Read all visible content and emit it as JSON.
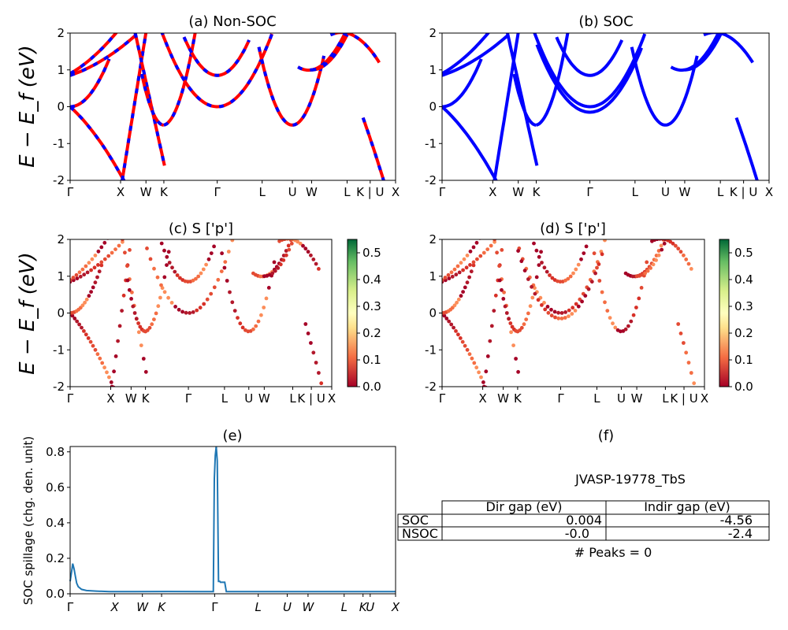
{
  "figure": {
    "ylabel_bands": "E − E_f (eV)",
    "sym_labels": [
      "Γ",
      "X",
      "W",
      "K",
      "Γ",
      "L",
      "U",
      "W",
      "L",
      "K | U",
      "X"
    ]
  },
  "chart_data": [
    {
      "id": "a",
      "type": "line",
      "title": "(a) Non-SOC",
      "ylim": [
        -2,
        2
      ],
      "yticks": [
        -2,
        -1,
        0,
        1,
        2
      ],
      "series": [
        {
          "color": "#ff0000",
          "style": "solid"
        },
        {
          "color": "#0000ff",
          "style": "dashed"
        }
      ]
    },
    {
      "id": "b",
      "type": "line",
      "title": "(b) SOC",
      "ylim": [
        -2,
        2
      ],
      "yticks": [
        -2,
        -1,
        0,
        1,
        2
      ],
      "series": [
        {
          "color": "#0000ff",
          "style": "solid"
        }
      ]
    },
    {
      "id": "c",
      "type": "scatter",
      "title": "(c)  S ['p']",
      "ylim": [
        -2,
        2
      ],
      "yticks": [
        -2,
        -1,
        0,
        1,
        2
      ],
      "colorbar": {
        "cmap": "RdYlGn",
        "range": [
          0.0,
          0.55
        ],
        "ticks": [
          "0.0",
          "0.1",
          "0.2",
          "0.3",
          "0.4",
          "0.5"
        ]
      }
    },
    {
      "id": "d",
      "type": "scatter",
      "title": "(d) S ['p']",
      "ylim": [
        -2,
        2
      ],
      "yticks": [
        -2,
        -1,
        0,
        1,
        2
      ],
      "colorbar": {
        "cmap": "RdYlGn",
        "range": [
          0.0,
          0.55
        ],
        "ticks": [
          "0.0",
          "0.1",
          "0.2",
          "0.3",
          "0.4",
          "0.5"
        ]
      }
    },
    {
      "id": "e",
      "type": "line",
      "title": "(e)",
      "ylabel": "SOC spillage (chg. den. unit)",
      "ylim": [
        0,
        0.83
      ],
      "yticks": [
        "0.0",
        "0.2",
        "0.4",
        "0.6",
        "0.8"
      ],
      "xticks": [
        "Γ",
        "X",
        "W",
        "K",
        "Γ",
        "L",
        "U",
        "W",
        "L",
        "K",
        "U",
        "X"
      ],
      "series": [
        {
          "color": "#1f77b4",
          "x": [
            0,
            0.004,
            0.008,
            0.012,
            0.016,
            0.02,
            0.025,
            0.035,
            0.05,
            0.08,
            0.12,
            0.2,
            0.3,
            0.4,
            0.44,
            0.443,
            0.446,
            0.449,
            0.452,
            0.456,
            0.46,
            0.462,
            0.475,
            0.48,
            0.6,
            0.7,
            0.8,
            0.9,
            1.0
          ],
          "y": [
            0.07,
            0.12,
            0.17,
            0.14,
            0.1,
            0.06,
            0.04,
            0.025,
            0.018,
            0.015,
            0.012,
            0.012,
            0.013,
            0.012,
            0.012,
            0.65,
            0.78,
            0.83,
            0.75,
            0.07,
            0.07,
            0.065,
            0.065,
            0.012,
            0.012,
            0.012,
            0.012,
            0.012,
            0.012
          ]
        }
      ]
    }
  ],
  "panel_f": {
    "title": "(f)",
    "material": "JVASP-19778_TbS",
    "columns": [
      "Dir gap (eV)",
      "Indir gap (eV)"
    ],
    "rows": [
      {
        "label": "SOC",
        "dir": "0.004",
        "indir": "-4.56"
      },
      {
        "label": "NSOC",
        "dir": "-0.0",
        "indir": "-2.4"
      }
    ],
    "peaks": "# Peaks = 0"
  }
}
